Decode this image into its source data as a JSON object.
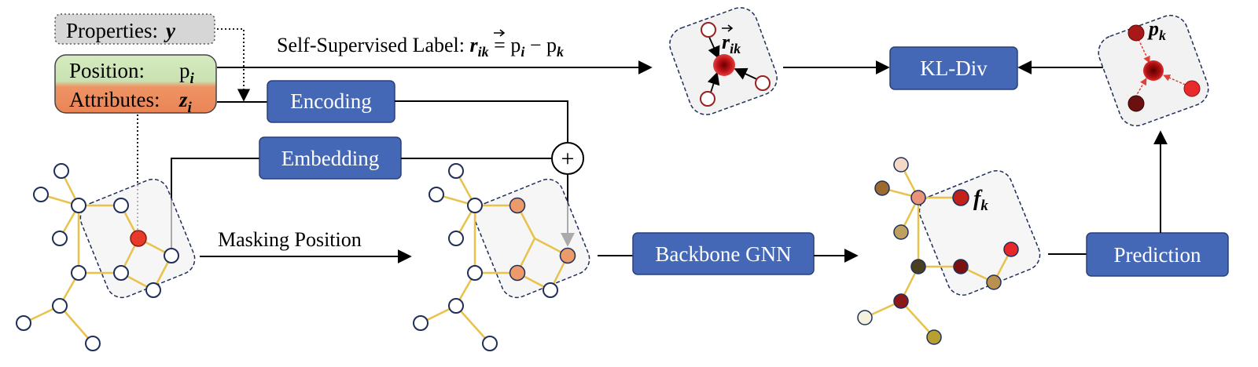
{
  "inputs": {
    "properties": {
      "label": "Properties:",
      "symbol": "y"
    },
    "position": {
      "label": "Position:",
      "symbol": "p",
      "subscript": "i"
    },
    "attributes": {
      "label": "Attributes:",
      "symbol": "z",
      "subscript": "i"
    }
  },
  "self_supervised": {
    "prefix": "Self-Supervised Label: ",
    "r_symbol": "r",
    "r_sub": "ik",
    "equals": " = ",
    "p1": "p",
    "p1_sub": "i",
    "minus": " − ",
    "p2": "p",
    "p2_sub": "k"
  },
  "boxes": {
    "encoding": "Encoding",
    "embedding": "Embedding",
    "backbone": "Backbone GNN",
    "prediction": "Prediction",
    "kl_div": "KL-Div"
  },
  "masking_label": "Masking Position",
  "plus_symbol": "+",
  "feature_label": {
    "symbol": "f",
    "subscript": "k"
  },
  "output_label": {
    "symbol": "p",
    "subscript": "k"
  },
  "target_label": {
    "symbol": "r",
    "subscript": "ik"
  },
  "colors": {
    "box_fill": "#4468b5",
    "box_stroke": "#2a3f78",
    "edge": "#e8c24a",
    "red_node": "#e83a2a",
    "orange_node": "#ec9a6a",
    "position_green": "#cfe6b8",
    "attributes_orange": "#ec8c5e",
    "properties_gray": "#d6d6d6"
  }
}
